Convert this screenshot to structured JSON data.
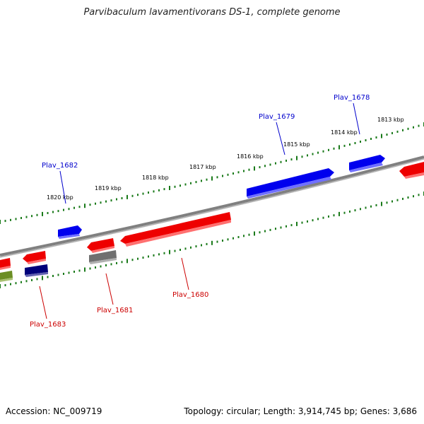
{
  "title": "Parvibaculum lavamentivorans DS-1, complete genome",
  "footer": {
    "accession": "Accession: NC_009719",
    "summary": "Topology: circular; Length: 3,914,745 bp; Genes: 3,686"
  },
  "colors": {
    "forward_gene": "#0000ee",
    "reverse_gene": "#ee0000",
    "tick": "#1a7a1a",
    "backbone": "#808080",
    "other_gene_dark": "#00007a",
    "other_gene_gray": "#707070",
    "other_gene_olive": "#6b8e23"
  },
  "kbp_labels": [
    "1813 kbp",
    "1814 kbp",
    "1815 kbp",
    "1816 kbp",
    "1817 kbp",
    "1818 kbp",
    "1819 kbp",
    "1820 kbp"
  ],
  "gene_labels": {
    "top": [
      "Plav_1678",
      "Plav_1679",
      "Plav_1682"
    ],
    "bottom": [
      "Plav_1680",
      "Plav_1681",
      "Plav_1683"
    ]
  }
}
